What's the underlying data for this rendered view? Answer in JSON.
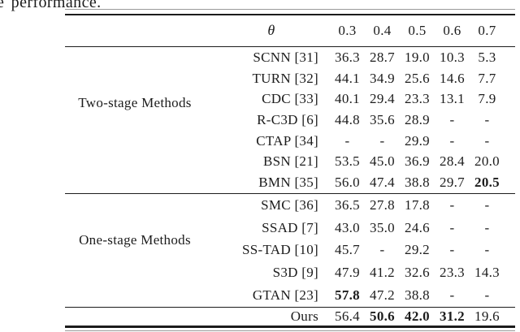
{
  "caption_fragment": "e performance.",
  "colors": {
    "background": "#ffffff",
    "text": "#1c1c1c",
    "rule": "#1c1c1c",
    "rule_faint": "#9a9a9a"
  },
  "table": {
    "header": {
      "theta": "θ",
      "thresholds": [
        "0.3",
        "0.4",
        "0.5",
        "0.6",
        "0.7"
      ]
    },
    "groups": [
      {
        "label": "Two-stage Methods",
        "rows": [
          {
            "method": "SCNN [31]",
            "values": [
              "36.3",
              "28.7",
              "19.0",
              "10.3",
              "5.3"
            ],
            "bold": [
              false,
              false,
              false,
              false,
              false
            ]
          },
          {
            "method": "TURN [32]",
            "values": [
              "44.1",
              "34.9",
              "25.6",
              "14.6",
              "7.7"
            ],
            "bold": [
              false,
              false,
              false,
              false,
              false
            ]
          },
          {
            "method": "CDC [33]",
            "values": [
              "40.1",
              "29.4",
              "23.3",
              "13.1",
              "7.9"
            ],
            "bold": [
              false,
              false,
              false,
              false,
              false
            ]
          },
          {
            "method": "R-C3D [6]",
            "values": [
              "44.8",
              "35.6",
              "28.9",
              "-",
              "-"
            ],
            "bold": [
              false,
              false,
              false,
              false,
              false
            ]
          },
          {
            "method": "CTAP [34]",
            "values": [
              "-",
              "-",
              "29.9",
              "-",
              "-"
            ],
            "bold": [
              false,
              false,
              false,
              false,
              false
            ]
          },
          {
            "method": "BSN [21]",
            "values": [
              "53.5",
              "45.0",
              "36.9",
              "28.4",
              "20.0"
            ],
            "bold": [
              false,
              false,
              false,
              false,
              false
            ]
          },
          {
            "method": "BMN [35]",
            "values": [
              "56.0",
              "47.4",
              "38.8",
              "29.7",
              "20.5"
            ],
            "bold": [
              false,
              false,
              false,
              false,
              true
            ]
          }
        ]
      },
      {
        "label": "One-stage Methods",
        "rows": [
          {
            "method": "SMC [36]",
            "values": [
              "36.5",
              "27.8",
              "17.8",
              "-",
              "-"
            ],
            "bold": [
              false,
              false,
              false,
              false,
              false
            ]
          },
          {
            "method": "SSAD [7]",
            "values": [
              "43.0",
              "35.0",
              "24.6",
              "-",
              "-"
            ],
            "bold": [
              false,
              false,
              false,
              false,
              false
            ]
          },
          {
            "method": "SS-TAD [10]",
            "values": [
              "45.7",
              "-",
              "29.2",
              "-",
              "-"
            ],
            "bold": [
              false,
              false,
              false,
              false,
              false
            ]
          },
          {
            "method": "S3D [9]",
            "values": [
              "47.9",
              "41.2",
              "32.6",
              "23.3",
              "14.3"
            ],
            "bold": [
              false,
              false,
              false,
              false,
              false
            ]
          },
          {
            "method": "GTAN [23]",
            "values": [
              "57.8",
              "47.2",
              "38.8",
              "-",
              "-"
            ],
            "bold": [
              true,
              false,
              false,
              false,
              false
            ]
          }
        ]
      }
    ],
    "ours": {
      "method": "Ours",
      "values": [
        "56.4",
        "50.6",
        "42.0",
        "31.2",
        "19.6"
      ],
      "bold": [
        false,
        true,
        true,
        true,
        false
      ]
    }
  }
}
